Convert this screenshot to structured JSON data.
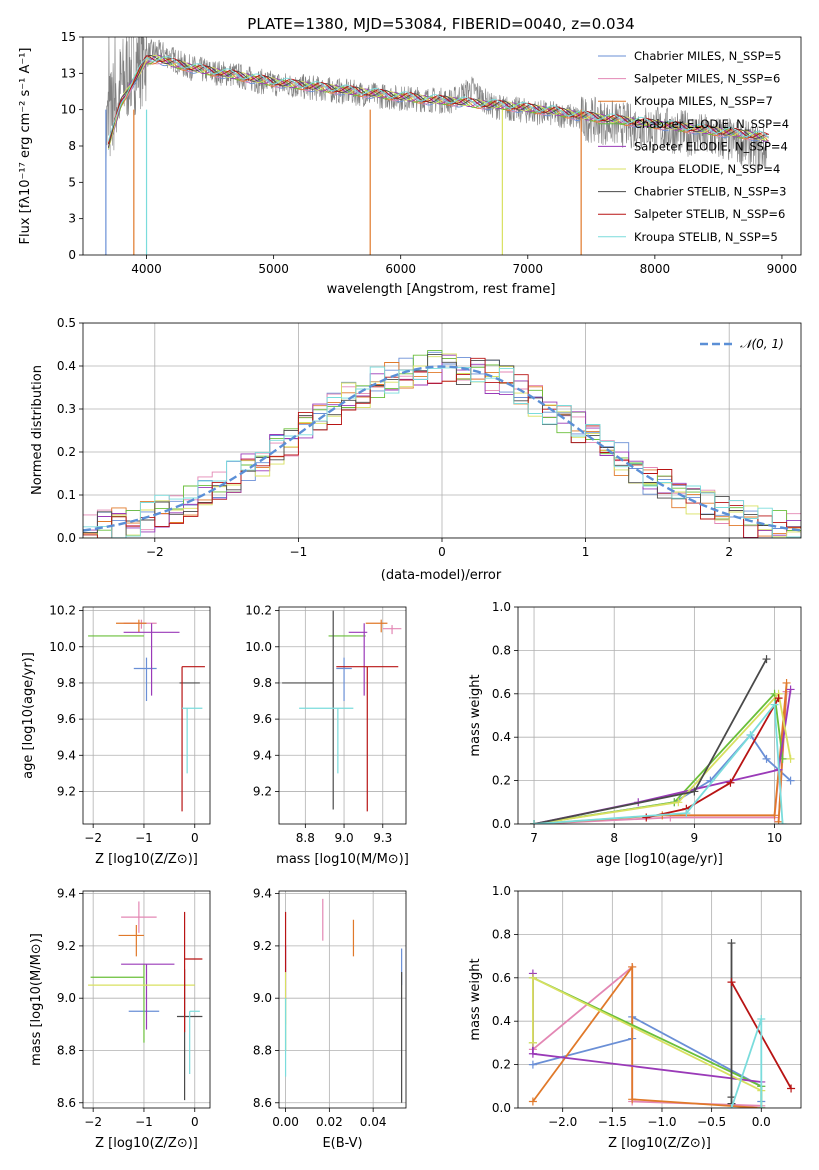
{
  "chart_data": [
    {
      "id": "spectrum",
      "type": "line",
      "title": "PLATE=1380, MJD=53084, FIBERID=0040, z=0.034",
      "xlabel": "wavelength [Angstrom, rest frame]",
      "ylabel": "Flux [f_λ 10^-17 erg cm^-2 s^-1 A^-1]",
      "xlim": [
        3500,
        9150
      ],
      "ylim": [
        0,
        15
      ],
      "xticks": [
        4000,
        5000,
        6000,
        7000,
        8000,
        9000
      ],
      "yticks": [
        0.0,
        2.5,
        5.0,
        7.5,
        10.0,
        12.5,
        15.0
      ],
      "legend_position": "top-right",
      "data_series": {
        "name": "observed spectrum",
        "color": "#808080",
        "x": [
          3680,
          3750,
          3850,
          3950,
          4050,
          4150,
          4300,
          4500,
          4700,
          4860,
          5000,
          5200,
          5400,
          5600,
          5800,
          6000,
          6200,
          6400,
          6563,
          6700,
          6900,
          7100,
          7300,
          7500,
          7700,
          7900,
          8100,
          8300,
          8500,
          8700,
          8880
        ],
        "y": [
          8.5,
          10.5,
          12.5,
          13.5,
          14.0,
          13.8,
          13.0,
          12.6,
          12.4,
          12.0,
          11.8,
          11.6,
          11.4,
          11.2,
          11.0,
          10.8,
          10.7,
          10.6,
          11.5,
          10.3,
          10.0,
          9.8,
          9.6,
          9.3,
          9.0,
          8.8,
          8.6,
          8.3,
          8.0,
          7.7,
          7.2
        ]
      },
      "series": [
        {
          "name": "Chabrier MILES, N_SSP=5",
          "color": "#6a8fd6"
        },
        {
          "name": "Salpeter MILES, N_SSP=6",
          "color": "#e387b4"
        },
        {
          "name": "Kroupa MILES, N_SSP=7",
          "color": "#e0792a"
        },
        {
          "name": "Chabrier ELODIE, N_SSP=4",
          "color": "#6abf3a"
        },
        {
          "name": "Salpeter ELODIE, N_SSP=4",
          "color": "#9a3ab8"
        },
        {
          "name": "Kroupa ELODIE, N_SSP=4",
          "color": "#d8e060"
        },
        {
          "name": "Chabrier STELIB, N_SSP=3",
          "color": "#4a4a4a"
        },
        {
          "name": "Salpeter STELIB, N_SSP=6",
          "color": "#b81414"
        },
        {
          "name": "Kroupa STELIB, N_SSP=5",
          "color": "#7adcdc"
        }
      ],
      "model_curve": {
        "x": [
          3700,
          3800,
          3900,
          4000,
          4100,
          4200,
          4400,
          4600,
          4800,
          5000,
          5200,
          5400,
          5600,
          5800,
          6000,
          6200,
          6400,
          6600,
          6800,
          7000,
          7200,
          7400,
          7600,
          7800,
          8000,
          8200,
          8400,
          8600,
          8800,
          8900
        ],
        "y": [
          7.5,
          10.5,
          12.0,
          13.4,
          13.5,
          13.2,
          12.8,
          12.5,
          12.2,
          11.9,
          11.7,
          11.5,
          11.3,
          11.1,
          10.9,
          10.7,
          10.6,
          10.4,
          10.3,
          10.1,
          9.9,
          9.6,
          9.4,
          9.2,
          9.0,
          8.8,
          8.6,
          8.4,
          8.2,
          8.0
        ]
      }
    },
    {
      "id": "residuals",
      "type": "histogram",
      "xlabel": "(data-model)/error",
      "ylabel": "Normed distribution",
      "xlim": [
        -2.5,
        2.5
      ],
      "ylim": [
        0,
        0.5
      ],
      "xticks": [
        -2,
        -1,
        0,
        1,
        2
      ],
      "yticks": [
        0.0,
        0.1,
        0.2,
        0.3,
        0.4,
        0.5
      ],
      "legend": [
        "𝒩(0, 1)"
      ],
      "legend_position": "top-right",
      "gaussian": {
        "mean": 0,
        "sigma": 1,
        "color": "#5b8fd6"
      },
      "bin_width": 0.1
    },
    {
      "id": "z-age",
      "type": "errorbar",
      "xlabel": "Z [log10(Z/Z⊙)]",
      "ylabel": "age [log10(age/yr)]",
      "xlim": [
        -2.2,
        0.3
      ],
      "ylim": [
        9.02,
        10.22
      ],
      "xticks": [
        -2,
        -1,
        0
      ],
      "yticks": [
        9.2,
        9.4,
        9.6,
        9.8,
        10.0,
        10.2
      ],
      "points": [
        {
          "color": "#6a8fd6",
          "x": -0.95,
          "xerr": [
            0.25,
            0.2
          ],
          "y": 9.88,
          "yerr": [
            0.18,
            0.06
          ]
        },
        {
          "color": "#e387b4",
          "x": -1.05,
          "xerr": [
            0.35,
            0.3
          ],
          "y": 10.13,
          "yerr": [
            0.03,
            0.02
          ]
        },
        {
          "color": "#e0792a",
          "x": -1.1,
          "xerr": [
            0.45,
            0.15
          ],
          "y": 10.13,
          "yerr": [
            0.05,
            0.02
          ]
        },
        {
          "color": "#6abf3a",
          "x": -1.05,
          "xerr": [
            1.05,
            0.05
          ],
          "y": 10.06,
          "yerr": [
            0.0,
            0.0
          ]
        },
        {
          "color": "#9a3ab8",
          "x": -0.85,
          "xerr": [
            0.55,
            0.55
          ],
          "y": 10.08,
          "yerr": [
            0.35,
            0.05
          ]
        },
        {
          "color": "#d8e060",
          "x": -0.8,
          "xerr": [
            0.0,
            0.0
          ],
          "y": 10.1,
          "yerr": [
            0.0,
            0.0
          ]
        },
        {
          "color": "#4a4a4a",
          "x": -0.1,
          "xerr": [
            0.2,
            0.2
          ],
          "y": 9.8,
          "yerr": [
            0.0,
            0.0
          ]
        },
        {
          "color": "#b81414",
          "x": -0.25,
          "xerr": [
            0.0,
            0.45
          ],
          "y": 9.89,
          "yerr": [
            0.8,
            0.0
          ]
        },
        {
          "color": "#7adcdc",
          "x": -0.15,
          "xerr": [
            0.1,
            0.3
          ],
          "y": 9.66,
          "yerr": [
            0.36,
            0.0
          ]
        }
      ]
    },
    {
      "id": "mass-age",
      "type": "errorbar",
      "xlabel": "mass [log10(M/M⊙)]",
      "ylabel": "",
      "xlim": [
        8.58,
        9.4
      ],
      "ylim": [
        9.02,
        10.22
      ],
      "xticks": [
        8.75,
        9.0,
        9.25
      ],
      "yticks": [
        9.2,
        9.4,
        9.6,
        9.8,
        10.0,
        10.2
      ],
      "points": [
        {
          "color": "#6a8fd6",
          "x": 9.0,
          "xerr": [
            0.05,
            0.05
          ],
          "y": 9.88,
          "yerr": [
            0.18,
            0.06
          ]
        },
        {
          "color": "#e387b4",
          "x": 9.31,
          "xerr": [
            0.06,
            0.06
          ],
          "y": 10.1,
          "yerr": [
            0.03,
            0.02
          ]
        },
        {
          "color": "#e0792a",
          "x": 9.24,
          "xerr": [
            0.1,
            0.04
          ],
          "y": 10.13,
          "yerr": [
            0.05,
            0.02
          ]
        },
        {
          "color": "#6abf3a",
          "x": 9.08,
          "xerr": [
            0.18,
            0.06
          ],
          "y": 10.06,
          "yerr": [
            0.0,
            0.0
          ]
        },
        {
          "color": "#9a3ab8",
          "x": 9.13,
          "xerr": [
            0.1,
            0.02
          ],
          "y": 10.08,
          "yerr": [
            0.35,
            0.05
          ]
        },
        {
          "color": "#d8e060",
          "x": 9.05,
          "xerr": [
            0.0,
            0.0
          ],
          "y": 10.1,
          "yerr": [
            0.0,
            0.0
          ]
        },
        {
          "color": "#4a4a4a",
          "x": 8.93,
          "xerr": [
            0.33,
            0.0
          ],
          "y": 9.8,
          "yerr": [
            0.7,
            0.4
          ]
        },
        {
          "color": "#b81414",
          "x": 9.15,
          "xerr": [
            0.2,
            0.2
          ],
          "y": 9.89,
          "yerr": [
            0.8,
            0.0
          ]
        },
        {
          "color": "#7adcdc",
          "x": 8.96,
          "xerr": [
            0.25,
            0.1
          ],
          "y": 9.66,
          "yerr": [
            0.36,
            0.0
          ]
        }
      ]
    },
    {
      "id": "age-weight",
      "type": "line",
      "xlabel": "age [log10(age/yr)]",
      "ylabel": "mass weight",
      "xlim": [
        6.8,
        10.33
      ],
      "ylim": [
        0,
        1
      ],
      "xticks": [
        7,
        8,
        9,
        10
      ],
      "yticks": [
        0.0,
        0.2,
        0.4,
        0.6,
        0.8,
        1.0
      ],
      "series": [
        {
          "color": "#6a8fd6",
          "x": [
            7.0,
            8.75,
            9.2,
            9.7,
            9.9,
            10.2
          ],
          "y": [
            0.0,
            0.1,
            0.2,
            0.41,
            0.3,
            0.2
          ]
        },
        {
          "color": "#e387b4",
          "x": [
            7.0,
            8.7,
            10.0,
            10.15,
            10.05
          ],
          "y": [
            0.0,
            0.03,
            0.03,
            0.61,
            0.01
          ]
        },
        {
          "color": "#e0792a",
          "x": [
            7.0,
            8.6,
            10.0,
            10.15,
            10.05
          ],
          "y": [
            0.0,
            0.04,
            0.04,
            0.65,
            0.01
          ]
        },
        {
          "color": "#6abf3a",
          "x": [
            7.0,
            8.75,
            10.0,
            10.1
          ],
          "y": [
            0.0,
            0.1,
            0.6,
            0.3
          ]
        },
        {
          "color": "#9a3ab8",
          "x": [
            7.0,
            8.3,
            10.05,
            10.2
          ],
          "y": [
            0.0,
            0.1,
            0.25,
            0.62
          ]
        },
        {
          "color": "#d8e060",
          "x": [
            7.0,
            8.8,
            10.05,
            10.2
          ],
          "y": [
            0.0,
            0.1,
            0.6,
            0.3
          ]
        },
        {
          "color": "#4a4a4a",
          "x": [
            7.0,
            9.0,
            9.9
          ],
          "y": [
            0.0,
            0.15,
            0.76
          ]
        },
        {
          "color": "#b81414",
          "x": [
            8.4,
            8.9,
            9.45,
            10.05
          ],
          "y": [
            0.03,
            0.07,
            0.19,
            0.58
          ]
        },
        {
          "color": "#7adcdc",
          "x": [
            7.0,
            8.9,
            9.7,
            10.0,
            10.1
          ],
          "y": [
            0.0,
            0.05,
            0.41,
            0.55,
            0.0
          ]
        }
      ]
    },
    {
      "id": "z-mass",
      "type": "errorbar",
      "xlabel": "Z [log10(Z/Z⊙)]",
      "ylabel": "mass [log10(M/M⊙)]",
      "xlim": [
        -2.2,
        0.3
      ],
      "ylim": [
        8.58,
        9.41
      ],
      "xticks": [
        -2,
        -1,
        0
      ],
      "yticks": [
        8.6,
        8.8,
        9.0,
        9.2,
        9.4
      ],
      "points": [
        {
          "color": "#6a8fd6",
          "x": -1.0,
          "xerr": [
            0.3,
            0.3
          ],
          "y": 8.95,
          "yerr": [
            0.0,
            0.0
          ]
        },
        {
          "color": "#e387b4",
          "x": -1.1,
          "xerr": [
            0.35,
            0.35
          ],
          "y": 9.31,
          "yerr": [
            0.06,
            0.06
          ]
        },
        {
          "color": "#e0792a",
          "x": -1.15,
          "xerr": [
            0.35,
            0.15
          ],
          "y": 9.24,
          "yerr": [
            0.08,
            0.04
          ]
        },
        {
          "color": "#6abf3a",
          "x": -1.0,
          "xerr": [
            1.05,
            0.0
          ],
          "y": 9.08,
          "yerr": [
            0.25,
            0.05
          ]
        },
        {
          "color": "#9a3ab8",
          "x": -0.95,
          "xerr": [
            0.5,
            0.55
          ],
          "y": 9.13,
          "yerr": [
            0.25,
            0.0
          ]
        },
        {
          "color": "#d8e060",
          "x": -1.05,
          "xerr": [
            1.05,
            1.05
          ],
          "y": 9.05,
          "yerr": [
            0.0,
            0.0
          ]
        },
        {
          "color": "#4a4a4a",
          "x": -0.2,
          "xerr": [
            0.15,
            0.35
          ],
          "y": 8.93,
          "yerr": [
            0.32,
            0.18
          ]
        },
        {
          "color": "#b81414",
          "x": -0.2,
          "xerr": [
            0.0,
            0.35
          ],
          "y": 9.15,
          "yerr": [
            0.28,
            0.18
          ]
        },
        {
          "color": "#7adcdc",
          "x": -0.1,
          "xerr": [
            0.0,
            0.2
          ],
          "y": 8.95,
          "yerr": [
            0.24,
            0.0
          ]
        }
      ]
    },
    {
      "id": "ebv-mass",
      "type": "errorbar",
      "xlabel": "E(B-V)",
      "ylabel": "",
      "xlim": [
        -0.003,
        0.055
      ],
      "ylim": [
        8.58,
        9.41
      ],
      "xticks": [
        0.0,
        0.02,
        0.04
      ],
      "yticks": [
        8.6,
        8.8,
        9.0,
        9.2,
        9.4
      ],
      "points": [
        {
          "color": "#6a8fd6",
          "x": 0.053,
          "xerr": [
            0,
            0
          ],
          "y": 9.05,
          "yerr": [
            0.0,
            0.14
          ]
        },
        {
          "color": "#e387b4",
          "x": 0.017,
          "xerr": [
            0,
            0
          ],
          "y": 9.3,
          "yerr": [
            0.08,
            0.08
          ]
        },
        {
          "color": "#e0792a",
          "x": 0.031,
          "xerr": [
            0,
            0
          ],
          "y": 9.23,
          "yerr": [
            0.07,
            0.07
          ]
        },
        {
          "color": "#6abf3a",
          "x": 0.0,
          "xerr": [
            0,
            0
          ],
          "y": 8.9,
          "yerr": [
            0.1,
            0.1
          ]
        },
        {
          "color": "#9a3ab8",
          "x": 0.0,
          "xerr": [
            0,
            0
          ],
          "y": 9.1,
          "yerr": [
            0.1,
            0.1
          ]
        },
        {
          "color": "#d8e060",
          "x": 0.0,
          "xerr": [
            0,
            0
          ],
          "y": 9.0,
          "yerr": [
            0.1,
            0.1
          ]
        },
        {
          "color": "#4a4a4a",
          "x": 0.053,
          "xerr": [
            0,
            0
          ],
          "y": 8.9,
          "yerr": [
            0.3,
            0.2
          ]
        },
        {
          "color": "#b81414",
          "x": 0.0,
          "xerr": [
            0,
            0
          ],
          "y": 9.2,
          "yerr": [
            0.1,
            0.13
          ]
        },
        {
          "color": "#7adcdc",
          "x": 0.0,
          "xerr": [
            0,
            0
          ],
          "y": 8.9,
          "yerr": [
            0.2,
            0.1
          ]
        }
      ]
    },
    {
      "id": "z-weight",
      "type": "line",
      "xlabel": "Z [log10(Z/Z⊙)]",
      "ylabel": "mass weight",
      "xlim": [
        -2.45,
        0.4
      ],
      "ylim": [
        0,
        1
      ],
      "xticks": [
        -2.0,
        -1.5,
        -1.0,
        -0.5,
        0.0
      ],
      "yticks": [
        0.0,
        0.2,
        0.4,
        0.6,
        0.8,
        1.0
      ],
      "series": [
        {
          "color": "#6a8fd6",
          "x": [
            -2.3,
            -1.3,
            -1.3,
            0.0,
            0.0
          ],
          "y": [
            0.2,
            0.32,
            0.42,
            0.1,
            0.03
          ]
        },
        {
          "color": "#e387b4",
          "x": [
            -2.3,
            -1.3,
            -1.3,
            0.0
          ],
          "y": [
            0.27,
            0.65,
            0.03,
            0.01
          ]
        },
        {
          "color": "#e0792a",
          "x": [
            -2.3,
            -1.3,
            -1.3,
            0.0
          ],
          "y": [
            0.03,
            0.65,
            0.04,
            0.0
          ]
        },
        {
          "color": "#6abf3a",
          "x": [
            -2.3,
            -2.3,
            0.0,
            0.0
          ],
          "y": [
            0.3,
            0.6,
            0.1,
            0.0
          ]
        },
        {
          "color": "#9a3ab8",
          "x": [
            -2.3,
            -2.3,
            0.0
          ],
          "y": [
            0.62,
            0.25,
            0.12
          ]
        },
        {
          "color": "#d8e060",
          "x": [
            -2.3,
            -2.3,
            0.0,
            0.0
          ],
          "y": [
            0.3,
            0.6,
            0.08,
            0.0
          ]
        },
        {
          "color": "#4a4a4a",
          "x": [
            -0.3,
            -0.3,
            -0.3
          ],
          "y": [
            0.76,
            0.05,
            0.02
          ]
        },
        {
          "color": "#b81414",
          "x": [
            -0.3,
            0.3
          ],
          "y": [
            0.58,
            0.09
          ]
        },
        {
          "color": "#7adcdc",
          "x": [
            -0.3,
            0.0,
            0.0
          ],
          "y": [
            0.0,
            0.41,
            0.0
          ]
        }
      ]
    }
  ]
}
